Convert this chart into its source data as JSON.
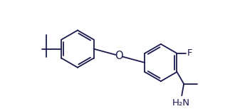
{
  "bg_color": "#ffffff",
  "line_color": "#1a1a4e",
  "line_width": 1.3,
  "label_F": "F",
  "label_O": "O",
  "label_NH2": "H₂N",
  "font_size": 9.5
}
